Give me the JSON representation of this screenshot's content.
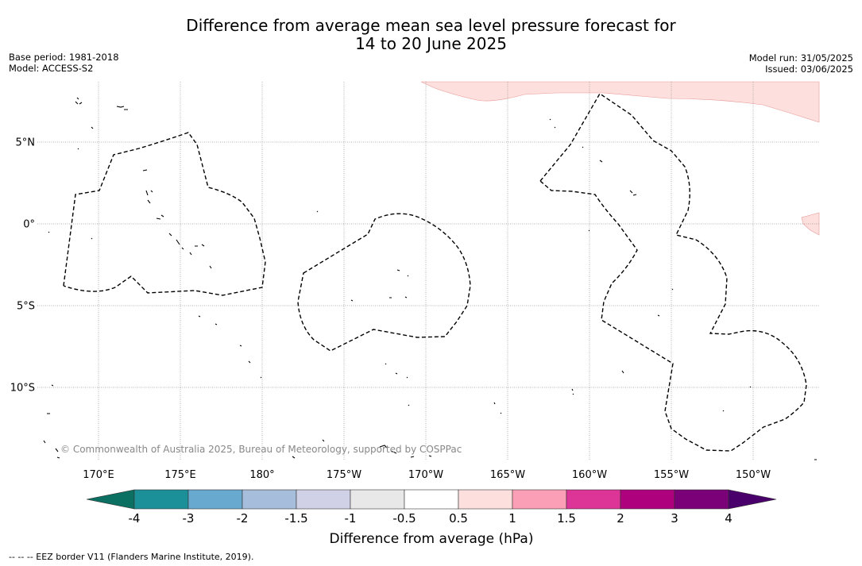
{
  "title_line1": "Difference from average mean sea level pressure forecast for",
  "title_line2": "14 to 20 June 2025",
  "meta": {
    "base_period": "Base period: 1981-2018",
    "model": "Model: ACCESS-S2",
    "model_run": "Model run: 31/05/2025",
    "issued": "Issued: 03/06/2025"
  },
  "map": {
    "lat_labels": [
      "5°N",
      "0°",
      "5°S",
      "10°S"
    ],
    "lon_labels": [
      "170°E",
      "175°E",
      "180°",
      "175°W",
      "170°W",
      "165°W",
      "160°W",
      "155°W",
      "150°W"
    ],
    "copyright": "© Commonwealth of Australia 2025, Bureau of Meteorology, supported by COSPPac",
    "shading_color": "#fde0dd",
    "eez_style": "dashed black"
  },
  "colorbar": {
    "title": "Difference from average (hPa)",
    "tick_labels": [
      "-4",
      "-3",
      "-2",
      "-1.5",
      "-1",
      "-0.5",
      "0.5",
      "1",
      "1.5",
      "2",
      "3",
      "4"
    ],
    "colors": [
      "#0b6f61",
      "#1c9099",
      "#67a9cf",
      "#a6bddb",
      "#d0d1e6",
      "#e8e8e8",
      "#ffffff",
      "#fde0dd",
      "#fa9fb5",
      "#dd3497",
      "#ae017e",
      "#7a0177",
      "#49006a"
    ]
  },
  "footer": "--  --  -- EEZ border V11 (Flanders Marine Institute, 2019)."
}
